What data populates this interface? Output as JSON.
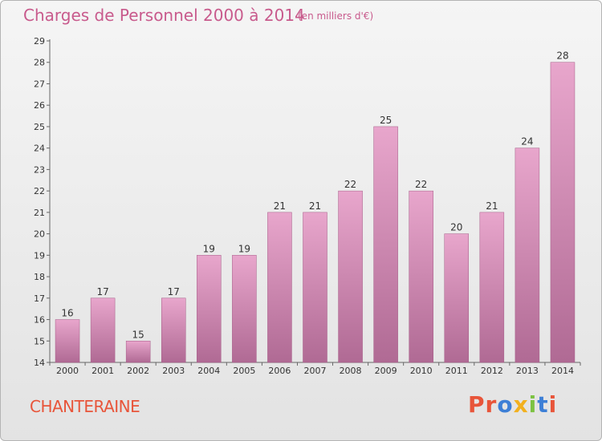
{
  "header": {
    "title": "Charges de Personnel 2000 à 2014",
    "subtitle": "(en milliers d'€)"
  },
  "footer": {
    "commune": "CHANTERAINE",
    "brand": "Proxiti"
  },
  "colors": {
    "title": "#c85a8c",
    "commune": "#e8553a",
    "bar_top": "#e8a6cc",
    "bar_bottom": "#b06a94",
    "brand_letters": [
      "#e8553a",
      "#e8553a",
      "#3d7fd6",
      "#f2b01e",
      "#7cc242",
      "#3d7fd6",
      "#e8553a"
    ]
  },
  "chart_data": {
    "type": "bar",
    "categories": [
      "2000",
      "2001",
      "2002",
      "2003",
      "2004",
      "2005",
      "2006",
      "2007",
      "2008",
      "2009",
      "2010",
      "2011",
      "2012",
      "2013",
      "2014"
    ],
    "values": [
      16,
      17,
      15,
      17,
      19,
      19,
      21,
      21,
      22,
      25,
      22,
      20,
      21,
      24,
      28
    ],
    "yticks": [
      14,
      15,
      16,
      17,
      18,
      19,
      20,
      21,
      22,
      23,
      24,
      25,
      26,
      27,
      28,
      29
    ],
    "ylim": [
      14,
      29
    ],
    "grid": false,
    "data_labels": true
  }
}
